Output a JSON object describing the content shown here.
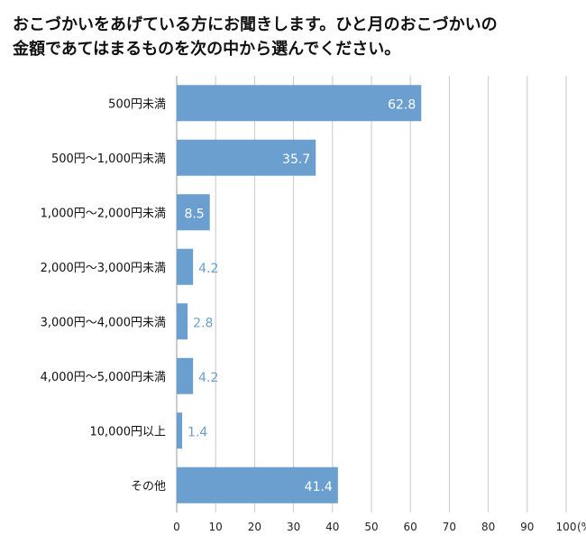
{
  "title_line1": "おこづかいをあげている方にお聞きします。ひと月のおこづかいの",
  "title_line2": "金額であてはまるものを次の中から選んでください。",
  "colors": {
    "bar": "#6a9fcf",
    "grid": "#c8c8c8",
    "axis": "#999999",
    "label_outside": "#6a9fcf",
    "label_inside": "#ffffff"
  },
  "chart_data": {
    "type": "bar",
    "orientation": "horizontal",
    "categories": [
      "500円未満",
      "500円～1,000円未満",
      "1,000円～2,000円未満",
      "2,000円～3,000円未満",
      "3,000円～4,000円未満",
      "4,000円～5,000円未満",
      "10,000円以上",
      "その他"
    ],
    "values": [
      62.8,
      35.7,
      8.5,
      4.2,
      2.8,
      4.2,
      1.4,
      41.4
    ],
    "value_labels": [
      "62.8",
      "35.7",
      "8.5",
      "4.2",
      "2.8",
      "4.2",
      "1.4",
      "41.4"
    ],
    "xlim": [
      0,
      100
    ],
    "xticks": [
      0,
      10,
      20,
      30,
      40,
      50,
      60,
      70,
      80,
      90,
      100
    ],
    "xtick_labels": [
      "0",
      "10",
      "20",
      "30",
      "40",
      "50",
      "60",
      "70",
      "80",
      "90",
      "100"
    ],
    "unit_label": "(%)",
    "grid": true
  }
}
